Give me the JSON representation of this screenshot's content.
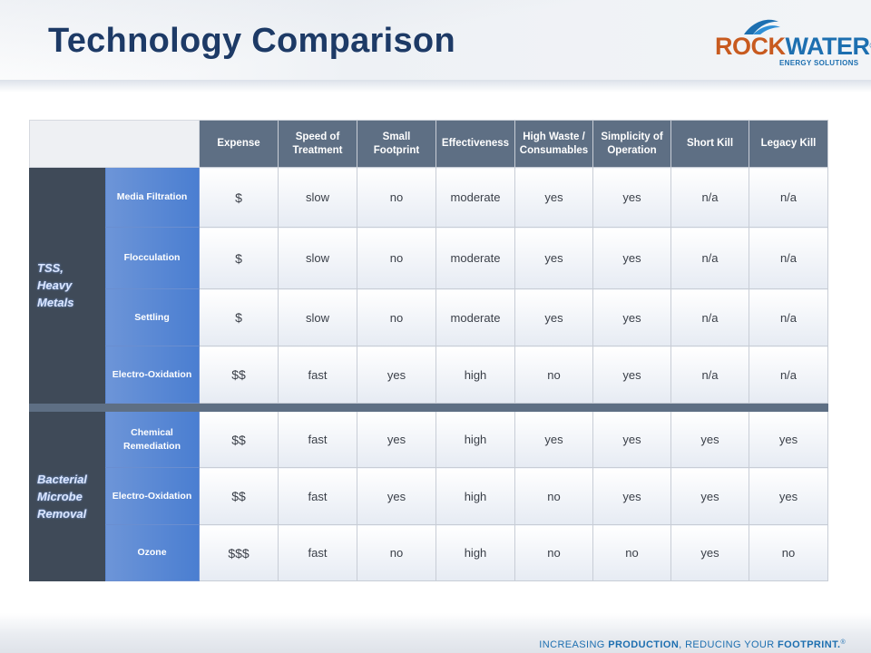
{
  "title": "Technology Comparison",
  "logo": {
    "word_rock": "ROCK",
    "word_water": "WATER",
    "trademark": "®",
    "subtitle": "ENERGY SOLUTIONS"
  },
  "table": {
    "columns": [
      "Expense",
      "Speed of Treatment",
      "Small Footprint",
      "Effectiveness",
      "High Waste / Consumables",
      "Simplicity of Operation",
      "Short Kill",
      "Legacy Kill"
    ],
    "groups": [
      {
        "label_lines": [
          "TSS,",
          "Heavy",
          "Metals"
        ],
        "rows": [
          {
            "tech": "Media Filtration",
            "values": [
              "$",
              "slow",
              "no",
              "moderate",
              "yes",
              "yes",
              "n/a",
              "n/a"
            ]
          },
          {
            "tech": "Flocculation",
            "values": [
              "$",
              "slow",
              "no",
              "moderate",
              "yes",
              "yes",
              "n/a",
              "n/a"
            ]
          },
          {
            "tech": "Settling",
            "values": [
              "$",
              "slow",
              "no",
              "moderate",
              "yes",
              "yes",
              "n/a",
              "n/a"
            ]
          },
          {
            "tech": "Electro-Oxidation",
            "values": [
              "$$",
              "fast",
              "yes",
              "high",
              "no",
              "yes",
              "n/a",
              "n/a"
            ]
          }
        ]
      },
      {
        "label_lines": [
          "Bacterial",
          "Microbe",
          "Removal"
        ],
        "rows": [
          {
            "tech": "Chemical Remediation",
            "values": [
              "$$",
              "fast",
              "yes",
              "high",
              "yes",
              "yes",
              "yes",
              "yes"
            ]
          },
          {
            "tech": "Electro-Oxidation",
            "values": [
              "$$",
              "fast",
              "yes",
              "high",
              "no",
              "yes",
              "yes",
              "yes"
            ]
          },
          {
            "tech": "Ozone",
            "values": [
              "$$$",
              "fast",
              "no",
              "high",
              "no",
              "no",
              "yes",
              "no"
            ]
          }
        ]
      }
    ]
  },
  "footer": {
    "tagline_part1": "INCREASING ",
    "tagline_bold1": "PRODUCTION",
    "tagline_part2": ", REDUCING YOUR ",
    "tagline_bold2": "FOOTPRINT.",
    "tagline_tm": "®"
  },
  "colors": {
    "title": "#1d3a66",
    "header_row": "#5e6f84",
    "group_cell": "#3f4a58",
    "tech_cell": "#4a7ed1",
    "brand_orange": "#c85a1f",
    "brand_blue": "#1d6fb0"
  }
}
